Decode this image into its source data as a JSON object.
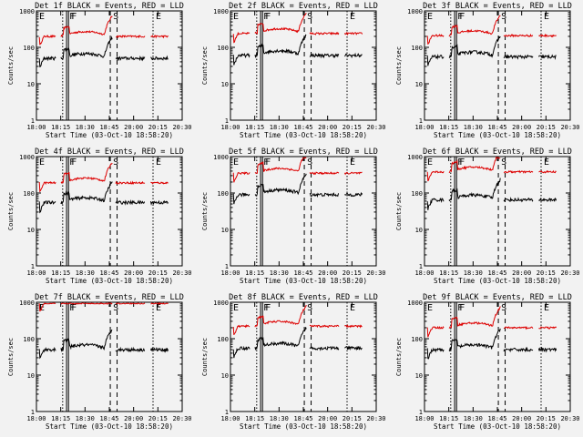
{
  "chart_data": {
    "type": "line",
    "layout": {
      "rows": 3,
      "cols": 3
    },
    "ylabel": "Counts/sec",
    "xlabel": "Start Time (03-Oct-10 18:58:20)",
    "yscale": "log",
    "ylim": [
      1,
      1000
    ],
    "xlim_minutes": [
      0,
      150
    ],
    "ytick_labels": [
      "1",
      "10",
      "100",
      "1000"
    ],
    "xtick_labels": [
      "18:00",
      "18:15",
      "18:30",
      "18:45",
      "20:00",
      "20:15",
      "20:30"
    ],
    "series_colors": {
      "events": "#000000",
      "lld": "#dd0000"
    },
    "markers": [
      {
        "label": "E",
        "x": 0,
        "style": "dotted"
      },
      {
        "label": "F",
        "x": 31,
        "style": "solid"
      },
      {
        "label": "F",
        "x": 33,
        "style": "solid"
      },
      {
        "label": "",
        "x": 27,
        "style": "dotted"
      },
      {
        "label": "S",
        "x": 76,
        "style": "dashed"
      },
      {
        "label": "",
        "x": 83,
        "style": "dashed"
      },
      {
        "label": "E",
        "x": 120,
        "style": "dotted"
      }
    ],
    "panels": [
      {
        "title": "Det 1f BLACK = Events, RED = LLD",
        "lld": 200,
        "ev": 50
      },
      {
        "title": "Det 2f BLACK = Events, RED = LLD",
        "lld": 240,
        "ev": 60
      },
      {
        "title": "Det 3f BLACK = Events, RED = LLD",
        "lld": 210,
        "ev": 55
      },
      {
        "title": "Det 4f BLACK = Events, RED = LLD",
        "lld": 190,
        "ev": 55
      },
      {
        "title": "Det 5f BLACK = Events, RED = LLD",
        "lld": 350,
        "ev": 90
      },
      {
        "title": "Det 6f BLACK = Events, RED = LLD",
        "lld": 380,
        "ev": 65
      },
      {
        "title": "Det 7f BLACK = Events, RED = LLD",
        "lld": 950,
        "ev": 50
      },
      {
        "title": "Det 8f BLACK = Events, RED = LLD",
        "lld": 220,
        "ev": 55
      },
      {
        "title": "Det 9f BLACK = Events, RED = LLD",
        "lld": 200,
        "ev": 50
      }
    ]
  }
}
